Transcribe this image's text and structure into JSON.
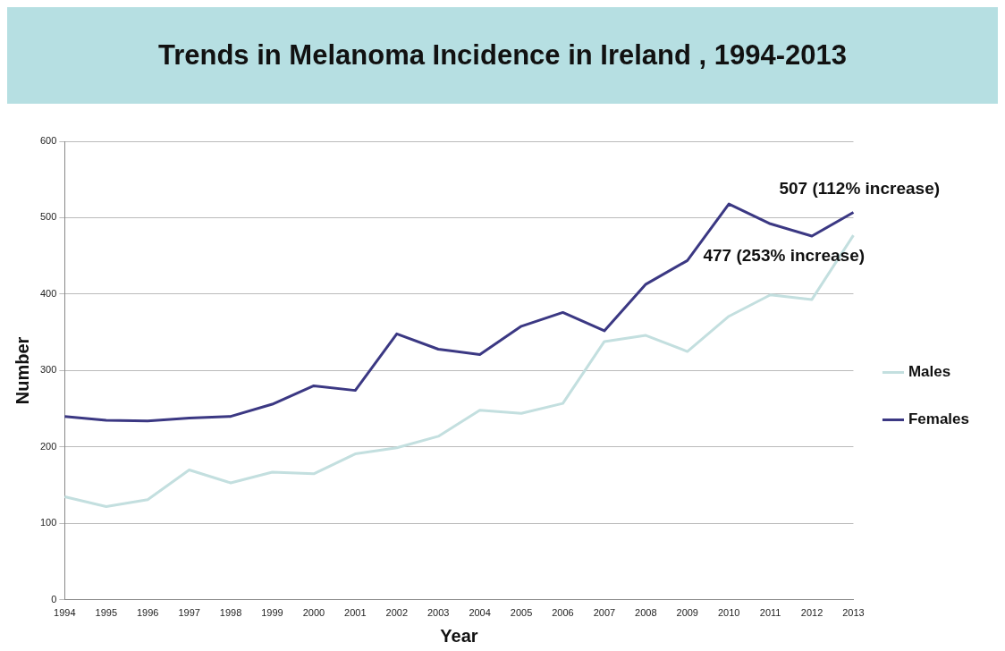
{
  "chart_data": {
    "type": "line",
    "title": "Trends in Melanoma Incidence in Ireland , 1994-2013",
    "xlabel": "Year",
    "ylabel": "Number",
    "categories": [
      "1994",
      "1995",
      "1996",
      "1997",
      "1998",
      "1999",
      "2000",
      "2001",
      "2002",
      "2003",
      "2004",
      "2005",
      "2006",
      "2007",
      "2008",
      "2009",
      "2010",
      "2011",
      "2012",
      "2013"
    ],
    "series": [
      {
        "name": "Males",
        "color": "#c3dfdf",
        "values": [
          135,
          122,
          131,
          170,
          153,
          167,
          165,
          191,
          199,
          214,
          248,
          244,
          257,
          338,
          346,
          325,
          371,
          399,
          393,
          477
        ]
      },
      {
        "name": "Females",
        "color": "#3b3883",
        "values": [
          240,
          235,
          234,
          238,
          240,
          256,
          280,
          274,
          348,
          328,
          321,
          358,
          376,
          352,
          413,
          444,
          518,
          492,
          476,
          507
        ]
      }
    ],
    "ylim": [
      0,
      600
    ],
    "yticks": [
      0,
      100,
      200,
      300,
      400,
      500,
      600
    ],
    "grid": "y",
    "legend": "right",
    "marker": "none",
    "line_style": "solid",
    "annotations": [
      {
        "text": "507 (112% increase)",
        "x": "2013",
        "y": 507
      },
      {
        "text": "477 (253% increase)",
        "x": "2013",
        "y": 477
      }
    ]
  }
}
